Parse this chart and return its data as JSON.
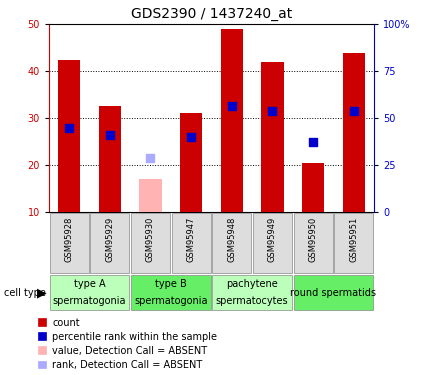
{
  "title": "GDS2390 / 1437240_at",
  "samples": [
    "GSM95928",
    "GSM95929",
    "GSM95930",
    "GSM95947",
    "GSM95948",
    "GSM95949",
    "GSM95950",
    "GSM95951"
  ],
  "count_values": [
    42.5,
    32.5,
    null,
    31.0,
    49.0,
    42.0,
    20.5,
    44.0
  ],
  "absent_value": [
    null,
    null,
    17.0,
    null,
    null,
    null,
    null,
    null
  ],
  "rank_values": [
    28.0,
    26.5,
    null,
    26.0,
    32.5,
    31.5,
    null,
    31.5
  ],
  "absent_rank": [
    null,
    null,
    21.5,
    null,
    null,
    null,
    null,
    null
  ],
  "rank_only_dot": [
    null,
    null,
    null,
    null,
    null,
    null,
    25.0,
    null
  ],
  "ylim": [
    10,
    50
  ],
  "yticks": [
    10,
    20,
    30,
    40,
    50
  ],
  "right_yticks": [
    0,
    25,
    50,
    75,
    100
  ],
  "right_ytick_labels": [
    "0",
    "25",
    "50",
    "75",
    "100%"
  ],
  "right_ylim": [
    0,
    100
  ],
  "gridlines": [
    20,
    30,
    40
  ],
  "bar_color": "#CC0000",
  "absent_bar_color": "#FFB3B3",
  "rank_color": "#0000CC",
  "absent_rank_color": "#AAAAFF",
  "cell_types": [
    {
      "label": "type A\nspermatogonia",
      "samples": [
        0,
        1
      ],
      "color": "#BBFFBB"
    },
    {
      "label": "type B\nspermatogonia",
      "samples": [
        2,
        3
      ],
      "color": "#66EE66"
    },
    {
      "label": "pachytene\nspermatocytes",
      "samples": [
        4,
        5
      ],
      "color": "#BBFFBB"
    },
    {
      "label": "round spermatids",
      "samples": [
        6,
        7
      ],
      "color": "#66EE66"
    }
  ],
  "legend_items": [
    {
      "label": "count",
      "color": "#CC0000"
    },
    {
      "label": "percentile rank within the sample",
      "color": "#0000CC"
    },
    {
      "label": "value, Detection Call = ABSENT",
      "color": "#FFB3B3"
    },
    {
      "label": "rank, Detection Call = ABSENT",
      "color": "#AAAAFF"
    }
  ],
  "bar_width": 0.55,
  "rank_square_size": 28,
  "tick_fontsize": 7,
  "sample_fontsize": 6,
  "cell_fontsize": 7,
  "legend_fontsize": 7,
  "title_fontsize": 10
}
